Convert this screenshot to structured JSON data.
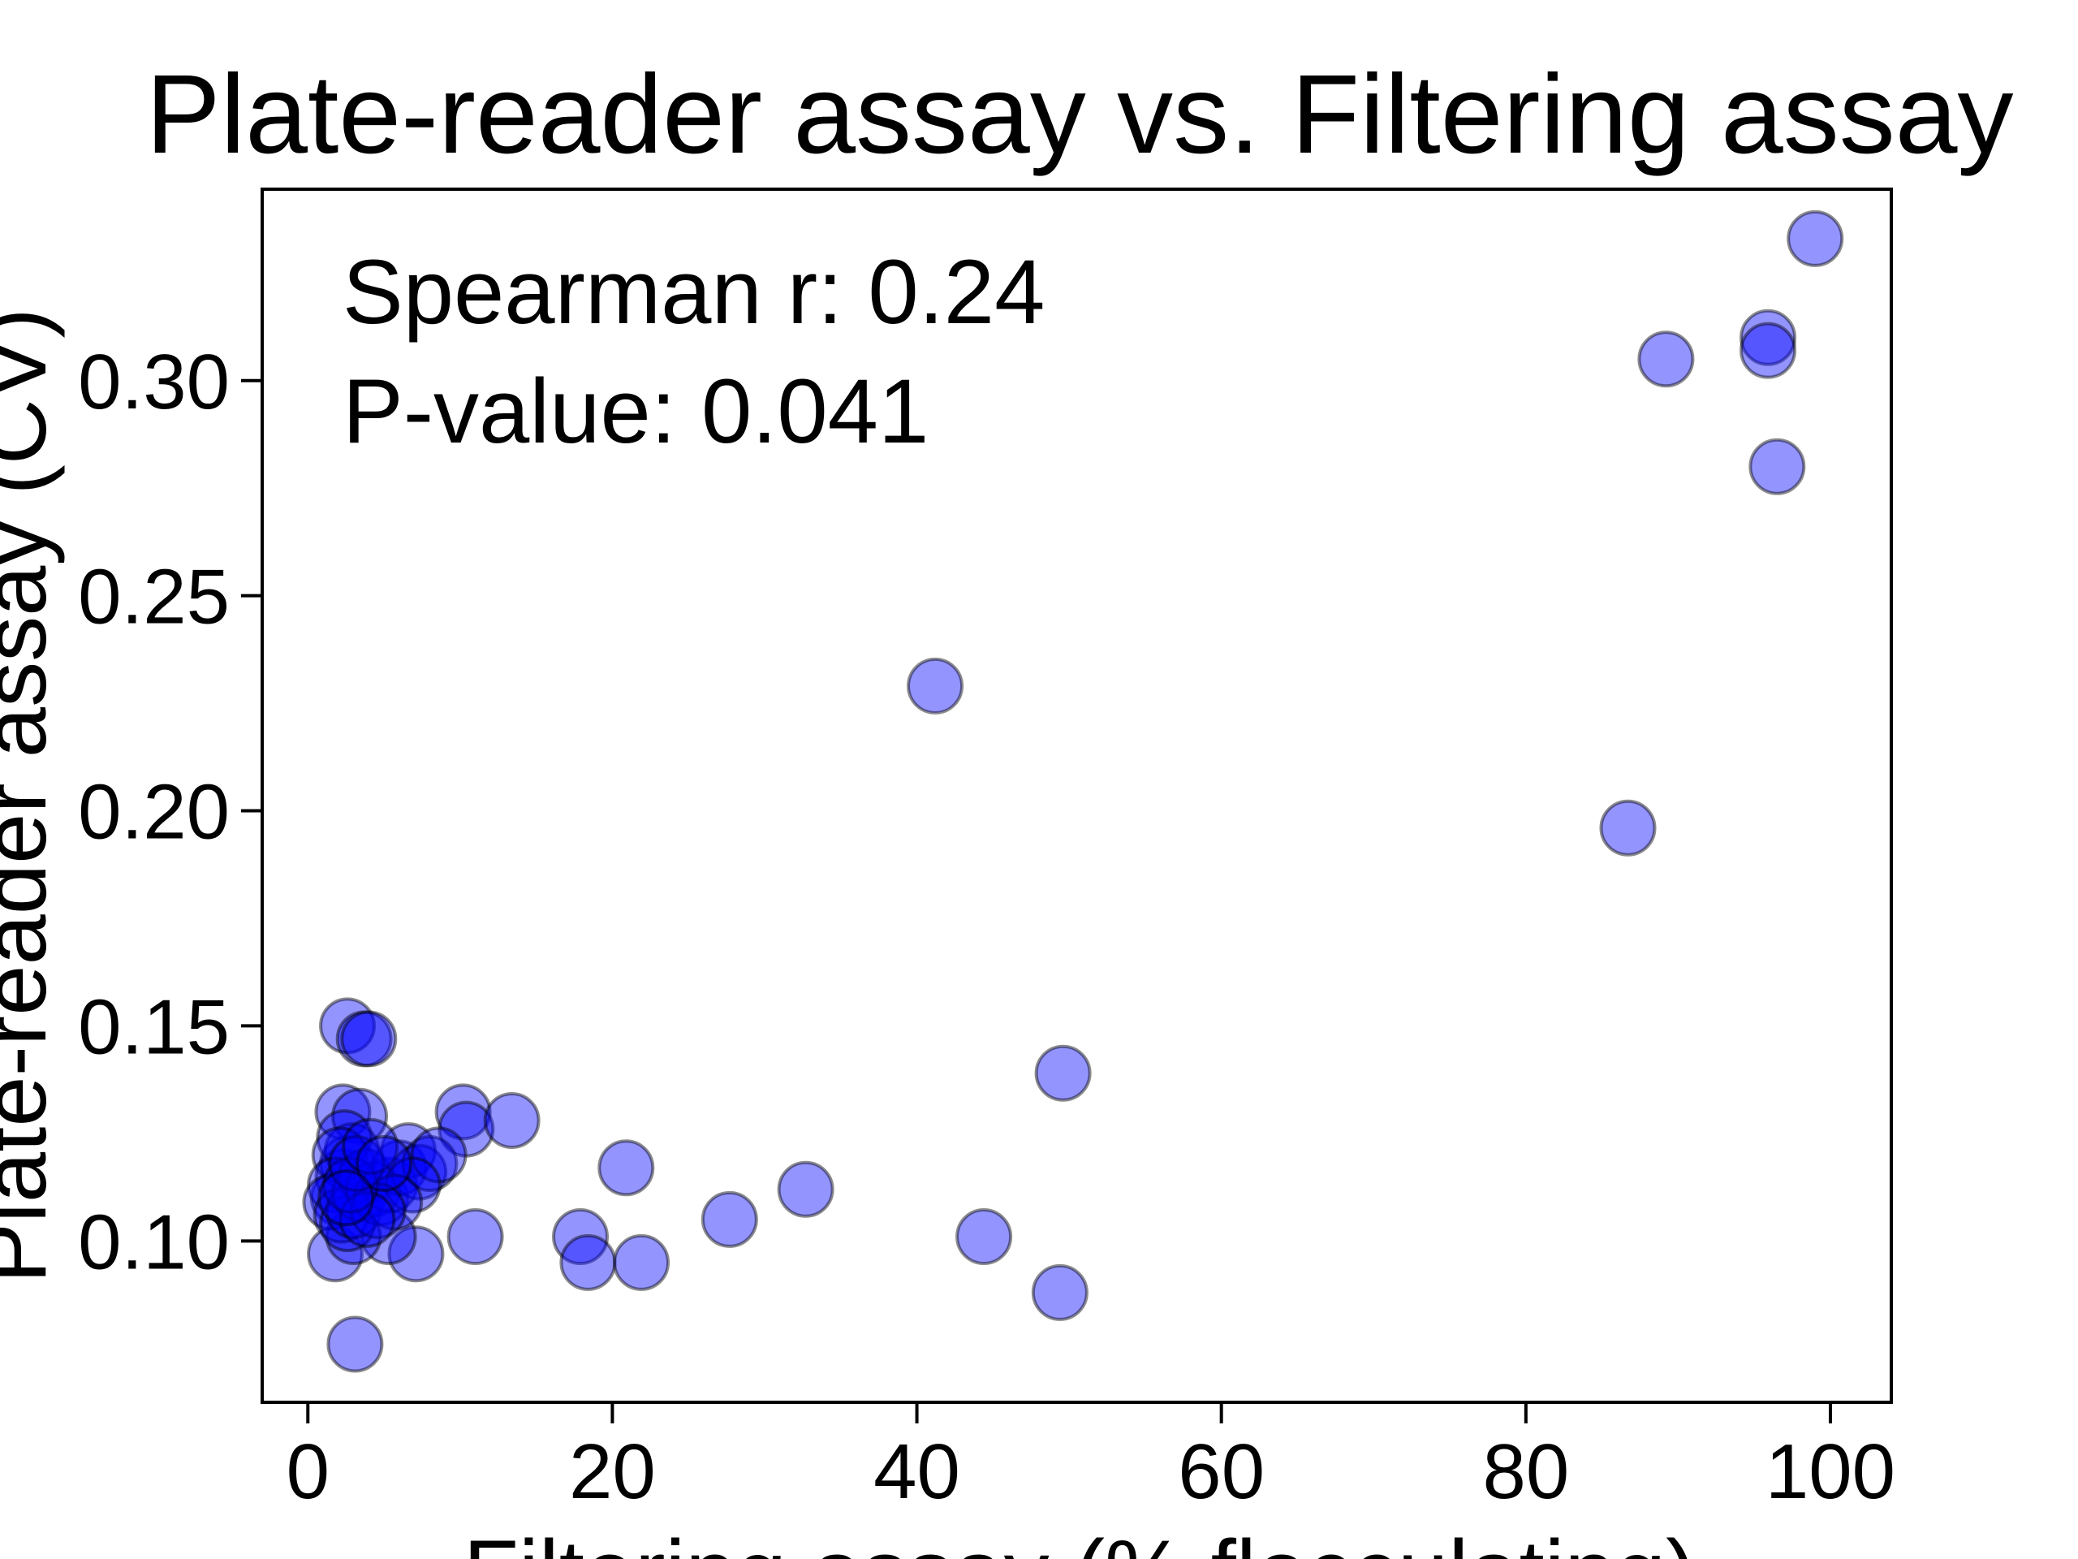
{
  "chart_data": {
    "type": "scatter",
    "title": "Plate-reader assay vs. Filtering assay",
    "xlabel": "Filtering assay (% flocculating)",
    "ylabel": "Plate-reader assay (CV)",
    "xlim": [
      -3,
      104
    ],
    "ylim": [
      0.0625,
      0.3445
    ],
    "xticks": [
      0,
      20,
      40,
      60,
      80,
      100
    ],
    "xtick_labels": [
      "0",
      "20",
      "40",
      "60",
      "80",
      "100"
    ],
    "yticks": [
      0.1,
      0.15,
      0.2,
      0.25,
      0.3
    ],
    "ytick_labels": [
      "0.10",
      "0.15",
      "0.20",
      "0.25",
      "0.30"
    ],
    "grid": false,
    "annotations": [
      "Spearman r: 0.24",
      "P-value: 0.041"
    ],
    "marker_color": "#0000ff",
    "marker_alpha": 0.42,
    "marker_edge": "#000000",
    "series": [
      {
        "points": [
          [
            99.0,
            0.333
          ],
          [
            95.9,
            0.31
          ],
          [
            95.9,
            0.307
          ],
          [
            89.2,
            0.305
          ],
          [
            96.5,
            0.28
          ],
          [
            41.2,
            0.229
          ],
          [
            86.7,
            0.196
          ],
          [
            49.6,
            0.139
          ],
          [
            2.6,
            0.15
          ],
          [
            3.7,
            0.147
          ],
          [
            4.0,
            0.147
          ],
          [
            2.3,
            0.13
          ],
          [
            3.4,
            0.129
          ],
          [
            10.2,
            0.13
          ],
          [
            10.4,
            0.126
          ],
          [
            13.4,
            0.128
          ],
          [
            20.9,
            0.117
          ],
          [
            32.7,
            0.112
          ],
          [
            27.7,
            0.105
          ],
          [
            17.9,
            0.101
          ],
          [
            11.0,
            0.101
          ],
          [
            44.4,
            0.101
          ],
          [
            18.4,
            0.095
          ],
          [
            21.9,
            0.095
          ],
          [
            49.4,
            0.088
          ],
          [
            3.1,
            0.076
          ],
          [
            1.8,
            0.097
          ],
          [
            7.1,
            0.097
          ],
          [
            5.3,
            0.101
          ],
          [
            3.0,
            0.101
          ],
          [
            2.0,
            0.11
          ],
          [
            2.3,
            0.115
          ],
          [
            2.6,
            0.118
          ],
          [
            2.9,
            0.121
          ],
          [
            2.4,
            0.124
          ],
          [
            2.1,
            0.12
          ],
          [
            1.8,
            0.113
          ],
          [
            1.5,
            0.109
          ],
          [
            2.2,
            0.106
          ],
          [
            2.6,
            0.104
          ],
          [
            3.0,
            0.107
          ],
          [
            3.4,
            0.111
          ],
          [
            3.8,
            0.115
          ],
          [
            4.3,
            0.112
          ],
          [
            4.8,
            0.11
          ],
          [
            5.4,
            0.113
          ],
          [
            6.0,
            0.117
          ],
          [
            6.6,
            0.121
          ],
          [
            7.3,
            0.116
          ],
          [
            8.0,
            0.118
          ],
          [
            8.6,
            0.12
          ],
          [
            6.9,
            0.113
          ],
          [
            5.7,
            0.109
          ],
          [
            4.6,
            0.107
          ],
          [
            3.9,
            0.105
          ],
          [
            2.8,
            0.113
          ],
          [
            3.2,
            0.118
          ],
          [
            4.1,
            0.122
          ],
          [
            5.0,
            0.118
          ],
          [
            2.5,
            0.11
          ]
        ]
      }
    ]
  }
}
